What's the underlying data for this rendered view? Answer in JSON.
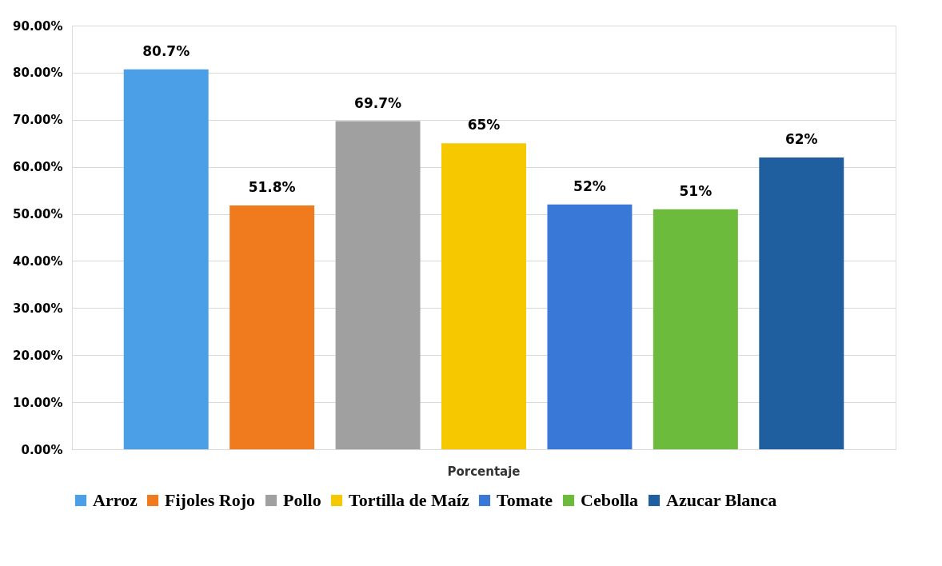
{
  "chart_data": {
    "type": "bar",
    "categories": [
      "Porcentaje"
    ],
    "series": [
      {
        "name": "Arroz",
        "color": "#4a9fe6",
        "values": [
          80.7
        ],
        "value_labels": [
          "80.7%"
        ]
      },
      {
        "name": "Fijoles Rojo",
        "color": "#f07a1e",
        "values": [
          51.8
        ],
        "value_labels": [
          "51.8%"
        ]
      },
      {
        "name": "Pollo",
        "color": "#a0a0a0",
        "values": [
          69.7
        ],
        "value_labels": [
          "69.7%"
        ]
      },
      {
        "name": "Tortilla de Maíz",
        "color": "#f5c800",
        "values": [
          65
        ],
        "value_labels": [
          "65%"
        ]
      },
      {
        "name": "Tomate",
        "color": "#3a78d8",
        "values": [
          52
        ],
        "value_labels": [
          "52%"
        ]
      },
      {
        "name": "Cebolla",
        "color": "#6cbb3c",
        "values": [
          51
        ],
        "value_labels": [
          "51%"
        ]
      },
      {
        "name": "Azucar Blanca",
        "color": "#1f5fa0",
        "values": [
          62
        ],
        "value_labels": [
          "62%"
        ]
      }
    ],
    "ylim": [
      0,
      90
    ],
    "yticks": [
      {
        "value": 0,
        "label": "0.00%"
      },
      {
        "value": 10,
        "label": "10.00%"
      },
      {
        "value": 20,
        "label": "20.00%"
      },
      {
        "value": 30,
        "label": "30.00%"
      },
      {
        "value": 40,
        "label": "40.00%"
      },
      {
        "value": 50,
        "label": "50.00%"
      },
      {
        "value": 60,
        "label": "60.00%"
      },
      {
        "value": 70,
        "label": "70.00%"
      },
      {
        "value": 80,
        "label": "80.00%"
      },
      {
        "value": 90,
        "label": "90.00%"
      }
    ],
    "grid": "y",
    "legend": "bottom"
  }
}
